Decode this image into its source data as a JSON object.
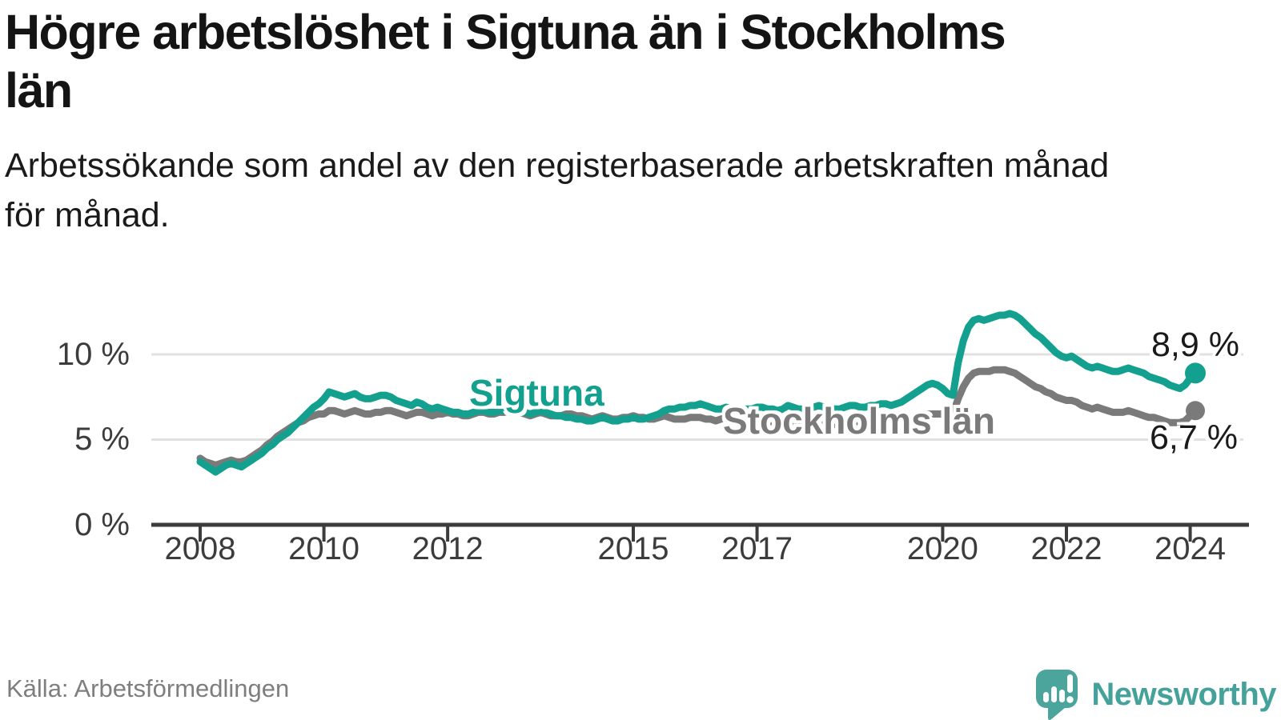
{
  "header": {
    "title_lines": [
      "Högre arbetslöshet i Sigtuna än i Stockholms",
      "län"
    ],
    "subtitle_lines": [
      "Arbetssökande som andel av den registerbaserade arbetskraften månad",
      "för månad."
    ]
  },
  "source": "Källa: Arbetsförmedlingen",
  "branding": {
    "name": "Newsworthy",
    "logo_icon": "speech-bubble-bar-chart-icon",
    "color": "#45A29A"
  },
  "colors": {
    "sigtuna_line": "#14A08E",
    "stockholm_line": "#7A7A7A",
    "grid": "#E1E1E1",
    "axis": "#3C3C3C",
    "text": "#1A1A1A",
    "muted_text": "#7E7E7E",
    "background": "#FFFFFF"
  },
  "chart_data": {
    "type": "line",
    "title": "Högre arbetslöshet i Sigtuna än i Stockholms län",
    "subtitle": "Arbetssökande som andel av den registerbaserade arbetskraften månad för månad.",
    "xlabel": "",
    "ylabel": "",
    "x_range": [
      "2008-01",
      "2024-02"
    ],
    "x_interval": "month",
    "x_tick_years": [
      2008,
      2010,
      2012,
      2015,
      2017,
      2020,
      2022,
      2024
    ],
    "x_tick_labels": [
      "2008",
      "2010",
      "2012",
      "2015",
      "2017",
      "2020",
      "2022",
      "2024"
    ],
    "y_tick_labels": [
      "0 %",
      "5 %",
      "10 %"
    ],
    "y_gridlines_pct": [
      5,
      10
    ],
    "ylim": [
      0,
      13.2
    ],
    "grid": "horizontal",
    "legend": "inline-labels",
    "series": [
      {
        "name": "Sigtuna",
        "color": "#14A08E",
        "end_label": "8,9 %",
        "end_value": 8.9,
        "values": [
          3.7,
          3.5,
          3.3,
          3.1,
          3.3,
          3.5,
          3.6,
          3.5,
          3.4,
          3.6,
          3.8,
          4.0,
          4.2,
          4.5,
          4.7,
          5.0,
          5.2,
          5.4,
          5.7,
          6.0,
          6.3,
          6.6,
          6.9,
          7.1,
          7.4,
          7.8,
          7.7,
          7.6,
          7.5,
          7.6,
          7.7,
          7.5,
          7.4,
          7.4,
          7.5,
          7.6,
          7.6,
          7.5,
          7.3,
          7.2,
          7.1,
          7.0,
          7.2,
          7.1,
          6.9,
          6.8,
          6.9,
          6.8,
          6.7,
          6.6,
          6.6,
          6.5,
          6.5,
          6.6,
          6.7,
          6.7,
          6.6,
          6.6,
          6.7,
          6.7,
          6.8,
          6.7,
          6.7,
          6.6,
          6.5,
          6.6,
          6.7,
          6.6,
          6.5,
          6.4,
          6.4,
          6.3,
          6.3,
          6.2,
          6.2,
          6.1,
          6.1,
          6.2,
          6.3,
          6.2,
          6.1,
          6.1,
          6.2,
          6.2,
          6.3,
          6.2,
          6.2,
          6.3,
          6.4,
          6.5,
          6.7,
          6.8,
          6.8,
          6.9,
          6.9,
          7.0,
          7.0,
          7.1,
          7.0,
          6.9,
          6.8,
          6.8,
          6.9,
          6.8,
          6.7,
          6.7,
          6.8,
          6.8,
          6.9,
          6.9,
          6.8,
          6.8,
          6.7,
          6.8,
          7.0,
          6.9,
          6.8,
          6.8,
          6.9,
          6.9,
          7.0,
          6.9,
          6.9,
          6.8,
          6.8,
          6.9,
          7.0,
          7.0,
          6.9,
          6.9,
          7.0,
          7.0,
          7.1,
          7.1,
          7.0,
          7.1,
          7.2,
          7.4,
          7.6,
          7.8,
          8.0,
          8.2,
          8.3,
          8.2,
          8.0,
          7.7,
          7.6,
          9.5,
          10.8,
          11.6,
          12.0,
          12.1,
          12.0,
          12.1,
          12.2,
          12.3,
          12.3,
          12.4,
          12.3,
          12.1,
          11.8,
          11.5,
          11.2,
          11.0,
          10.7,
          10.4,
          10.1,
          9.9,
          9.8,
          9.9,
          9.7,
          9.5,
          9.3,
          9.2,
          9.3,
          9.2,
          9.1,
          9.0,
          9.0,
          9.1,
          9.2,
          9.1,
          9.0,
          8.9,
          8.7,
          8.6,
          8.5,
          8.4,
          8.2,
          8.1,
          8.0,
          8.2,
          8.6,
          8.9
        ]
      },
      {
        "name": "Stockholms län",
        "color": "#7A7A7A",
        "end_label": "6,7 %",
        "end_value": 6.7,
        "values": [
          3.9,
          3.7,
          3.6,
          3.5,
          3.6,
          3.7,
          3.8,
          3.7,
          3.7,
          3.8,
          4.0,
          4.2,
          4.4,
          4.7,
          4.9,
          5.2,
          5.4,
          5.6,
          5.8,
          6.0,
          6.1,
          6.3,
          6.4,
          6.5,
          6.5,
          6.7,
          6.7,
          6.6,
          6.5,
          6.6,
          6.7,
          6.6,
          6.5,
          6.5,
          6.6,
          6.6,
          6.7,
          6.7,
          6.6,
          6.5,
          6.4,
          6.5,
          6.6,
          6.6,
          6.5,
          6.4,
          6.5,
          6.5,
          6.6,
          6.5,
          6.5,
          6.4,
          6.4,
          6.5,
          6.6,
          6.6,
          6.5,
          6.5,
          6.6,
          6.6,
          6.7,
          6.6,
          6.6,
          6.5,
          6.4,
          6.5,
          6.6,
          6.5,
          6.4,
          6.4,
          6.4,
          6.5,
          6.5,
          6.4,
          6.4,
          6.3,
          6.2,
          6.3,
          6.4,
          6.3,
          6.2,
          6.2,
          6.3,
          6.3,
          6.4,
          6.3,
          6.3,
          6.2,
          6.2,
          6.3,
          6.4,
          6.3,
          6.2,
          6.2,
          6.2,
          6.3,
          6.3,
          6.3,
          6.2,
          6.2,
          6.1,
          6.2,
          6.3,
          6.2,
          6.1,
          6.1,
          6.1,
          6.2,
          6.2,
          6.1,
          6.1,
          6.0,
          6.0,
          6.1,
          6.2,
          6.1,
          6.0,
          5.9,
          6.0,
          6.0,
          6.1,
          6.0,
          5.9,
          5.9,
          5.8,
          5.9,
          6.0,
          6.0,
          5.9,
          5.9,
          6.0,
          6.0,
          6.1,
          6.1,
          6.0,
          6.1,
          6.1,
          6.2,
          6.3,
          6.4,
          6.4,
          6.5,
          6.5,
          6.5,
          6.5,
          6.4,
          6.5,
          7.4,
          8.1,
          8.6,
          8.9,
          9.0,
          9.0,
          9.0,
          9.1,
          9.1,
          9.1,
          9.0,
          8.9,
          8.7,
          8.5,
          8.3,
          8.1,
          8.0,
          7.8,
          7.7,
          7.5,
          7.4,
          7.3,
          7.3,
          7.2,
          7.0,
          6.9,
          6.8,
          6.9,
          6.8,
          6.7,
          6.6,
          6.6,
          6.6,
          6.7,
          6.6,
          6.5,
          6.4,
          6.3,
          6.3,
          6.2,
          6.1,
          6.0,
          6.0,
          6.0,
          6.1,
          6.4,
          6.7
        ]
      }
    ]
  }
}
